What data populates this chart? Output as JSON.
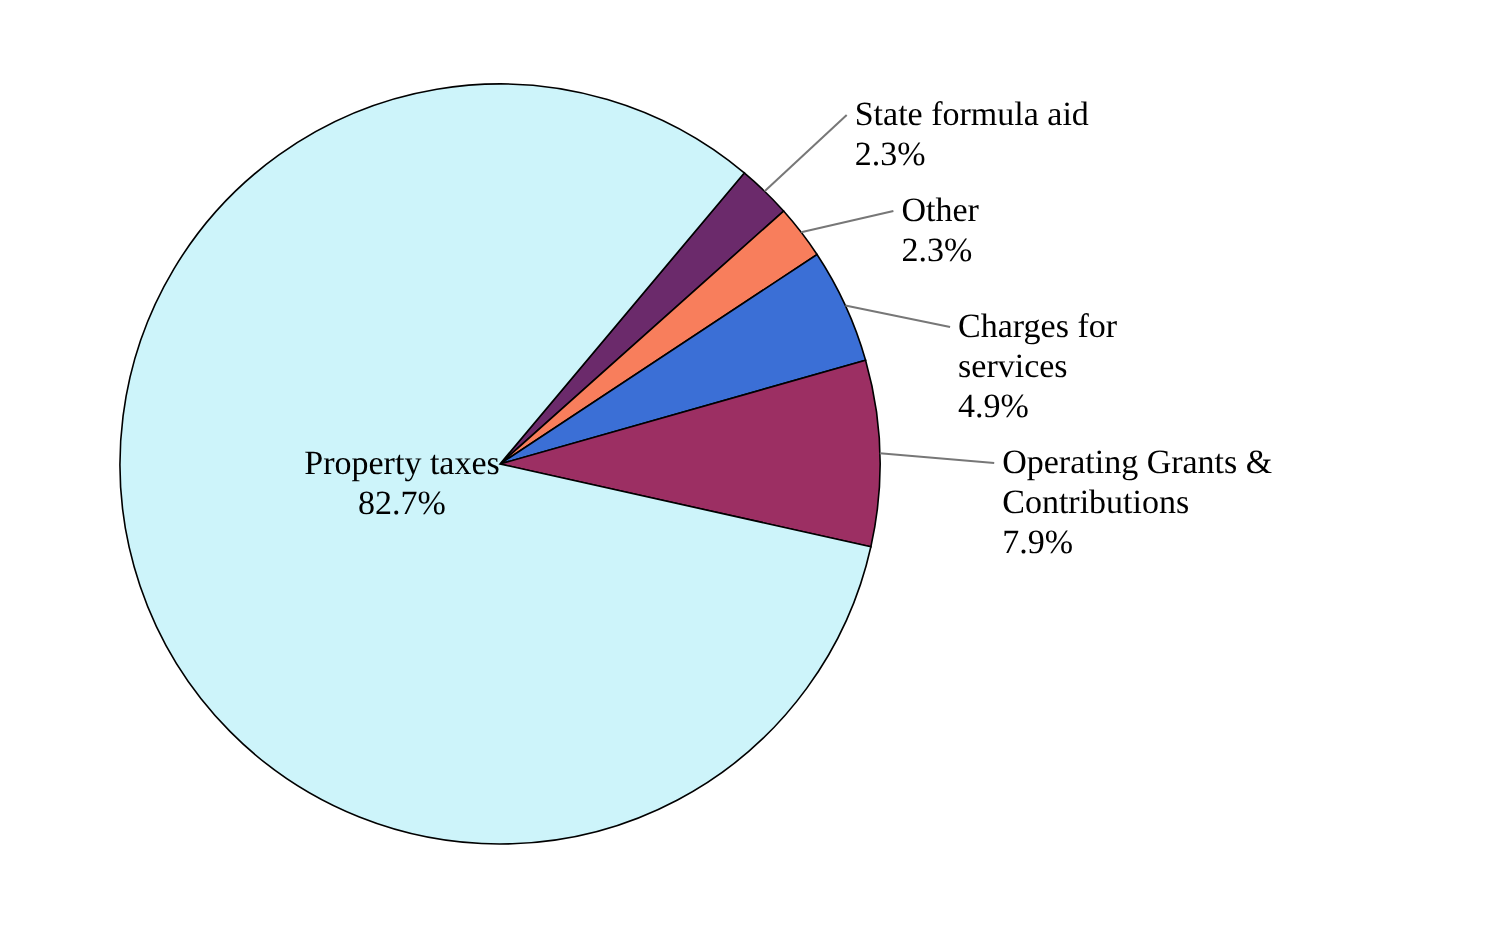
{
  "chart_data": {
    "type": "pie",
    "categories": [
      "State formula aid",
      "Other",
      "Charges for services",
      "Operating Grants & Contributions",
      "Property taxes"
    ],
    "values": [
      2.3,
      2.3,
      4.9,
      7.9,
      82.7
    ],
    "value_labels": [
      "2.3%",
      "2.3%",
      "4.9%",
      "7.9%",
      "82.7%"
    ],
    "colors": [
      "#6b2a6b",
      "#f87e5c",
      "#3b6fd6",
      "#9c2f63",
      "#cdf4fa"
    ]
  }
}
